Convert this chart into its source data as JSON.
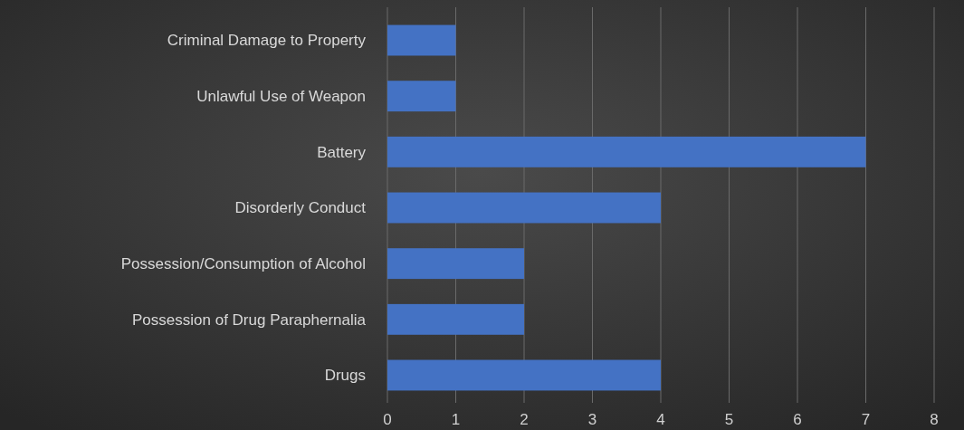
{
  "chart_data": {
    "type": "bar",
    "orientation": "horizontal",
    "categories": [
      "Criminal Damage to Property",
      "Unlawful Use of Weapon",
      "Battery",
      "Disorderly Conduct",
      "Possession/Consumption of Alcohol",
      "Possession of Drug Paraphernalia",
      "Drugs"
    ],
    "values": [
      1,
      1,
      7,
      4,
      2,
      2,
      4
    ],
    "color": "#4472c4",
    "xlim": [
      0,
      8
    ],
    "xticks": [
      0,
      1,
      2,
      3,
      4,
      5,
      6,
      7,
      8
    ],
    "grid": "x"
  }
}
